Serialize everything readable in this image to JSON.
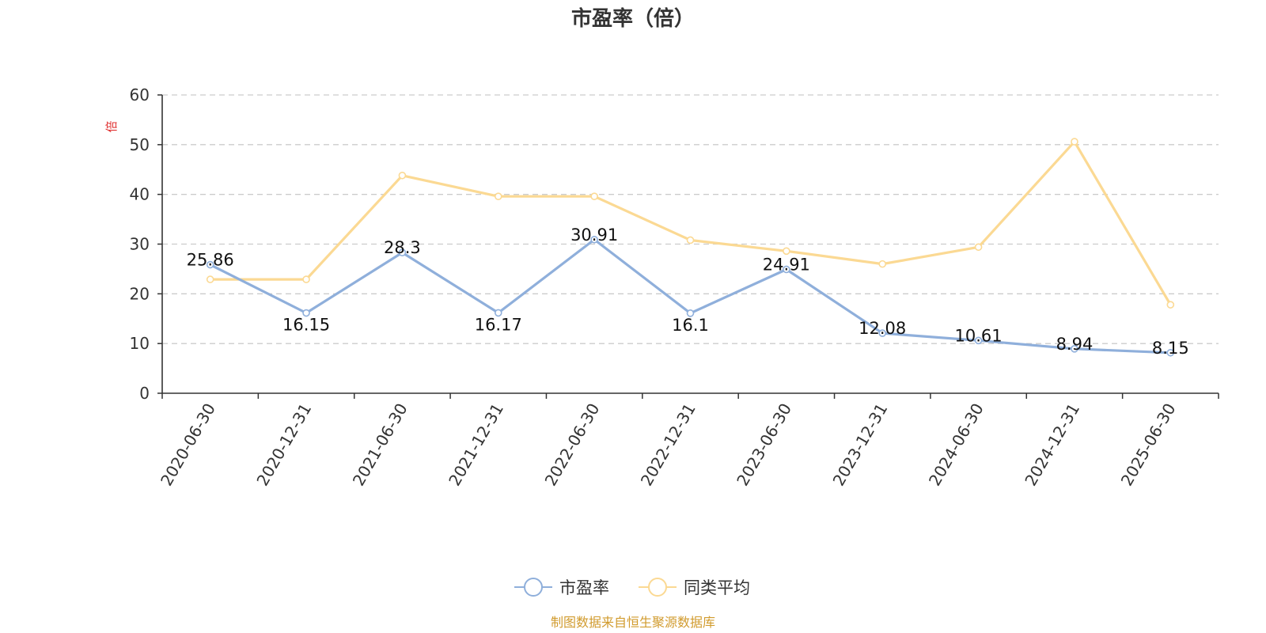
{
  "chart_data": {
    "type": "line",
    "title": "市盈率（倍）",
    "ylabel": "倍",
    "xlabel": "",
    "ylim": [
      0,
      60
    ],
    "yticks": [
      0,
      10,
      20,
      30,
      40,
      50,
      60
    ],
    "grid": true,
    "legend_position": "bottom",
    "categories": [
      "2020-06-30",
      "2020-12-31",
      "2021-06-30",
      "2021-12-31",
      "2022-06-30",
      "2022-12-31",
      "2023-06-30",
      "2023-12-31",
      "2024-06-30",
      "2024-12-31",
      "2025-06-30"
    ],
    "series": [
      {
        "name": "市盈率",
        "color": "#8fafdb",
        "values": [
          25.86,
          16.15,
          28.3,
          16.17,
          30.91,
          16.1,
          24.91,
          12.08,
          10.61,
          8.94,
          8.15
        ],
        "labels": [
          "25.86",
          "16.15",
          "28.3",
          "16.17",
          "30.91",
          "16.1",
          "24.91",
          "12.08",
          "10.61",
          "8.94",
          "8.15"
        ]
      },
      {
        "name": "同类平均",
        "color": "#fbd993",
        "values": [
          22.9,
          22.9,
          43.8,
          39.6,
          39.6,
          30.8,
          28.6,
          26.0,
          29.4,
          50.6,
          17.8
        ]
      }
    ],
    "source": "制图数据来自恒生聚源数据库",
    "source_color": "#d19b2e",
    "unit_color": "#e03030"
  }
}
